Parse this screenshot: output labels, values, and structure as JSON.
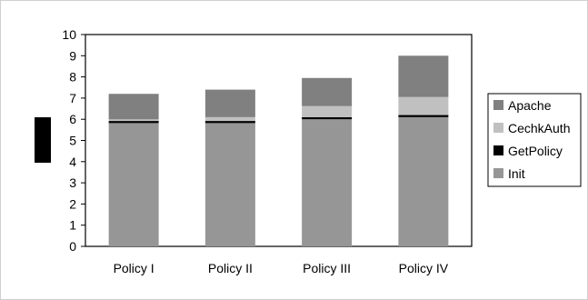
{
  "chart_data": {
    "type": "bar",
    "stacked": true,
    "categories": [
      "Policy I",
      "Policy II",
      "Policy III",
      "Policy IV"
    ],
    "series": [
      {
        "name": "Init",
        "color": "#969696",
        "values": [
          5.82,
          5.82,
          6.0,
          6.1
        ]
      },
      {
        "name": "GetPolicy",
        "color": "#000000",
        "values": [
          0.1,
          0.1,
          0.1,
          0.1
        ]
      },
      {
        "name": "CechkAuth",
        "color": "#c0c0c0",
        "values": [
          0.08,
          0.18,
          0.52,
          0.85
        ]
      },
      {
        "name": "Apache",
        "color": "#808080",
        "values": [
          1.2,
          1.3,
          1.33,
          1.95
        ]
      }
    ],
    "ylim": [
      0,
      10
    ],
    "yticks": [
      "0",
      "1",
      "2",
      "3",
      "4",
      "5",
      "6",
      "7",
      "8",
      "9",
      "10"
    ],
    "grid": false,
    "legend_position": "right",
    "legend_order": [
      "Apache",
      "CechkAuth",
      "GetPolicy",
      "Init"
    ],
    "title": "",
    "xlabel": "",
    "ylabel": ""
  }
}
